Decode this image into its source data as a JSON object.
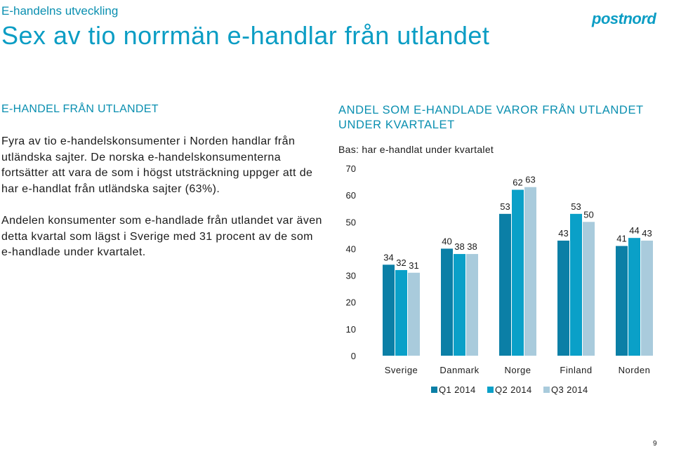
{
  "header": {
    "kicker": "E-handelns utveckling",
    "headline": "Sex av tio norrmän e-handlar från utlandet",
    "logo_text": "postnord"
  },
  "left": {
    "section_title": "E-HANDEL FRÅN UTLANDET",
    "paragraphs": [
      "Fyra av tio e-handelskonsumenter i Norden handlar från utländska sajter. De norska e-handelskonsumenterna fortsätter att vara de som i högst utsträckning uppger att de har e-handlat från utländska sajter (63%).",
      "Andelen konsumenter som e-handlade från utlandet var även detta kvartal som lägst i Sverige med 31 procent av de som e-handlade under kvartalet."
    ]
  },
  "chart": {
    "title": "ANDEL SOM E-HANDLADE VAROR FRÅN UTLANDET UNDER KVARTALET",
    "subtitle": "Bas: har e-handlat under kvartalet"
  },
  "chart_data": {
    "type": "bar",
    "title": "ANDEL SOM E-HANDLADE VAROR FRÅN UTLANDET UNDER KVARTALET",
    "subtitle": "Bas: har e-handlat under kvartalet",
    "categories": [
      "Sverige",
      "Danmark",
      "Norge",
      "Finland",
      "Norden"
    ],
    "series": [
      {
        "name": "Q1 2014",
        "values": [
          34,
          40,
          53,
          43,
          41
        ],
        "color": "#0b7fa6"
      },
      {
        "name": "Q2 2014",
        "values": [
          32,
          38,
          62,
          53,
          44
        ],
        "color": "#0aa0c8"
      },
      {
        "name": "Q3 2014",
        "values": [
          31,
          38,
          63,
          50,
          43
        ],
        "color": "#a9cbdc"
      }
    ],
    "yticks": [
      "0",
      "10",
      "20",
      "30",
      "40",
      "50",
      "60",
      "70"
    ],
    "ylim": [
      0,
      70
    ],
    "xlabel": "",
    "ylabel": "",
    "grid": false,
    "legend": "bottom",
    "data_labels": true
  },
  "page": {
    "number": "9"
  }
}
